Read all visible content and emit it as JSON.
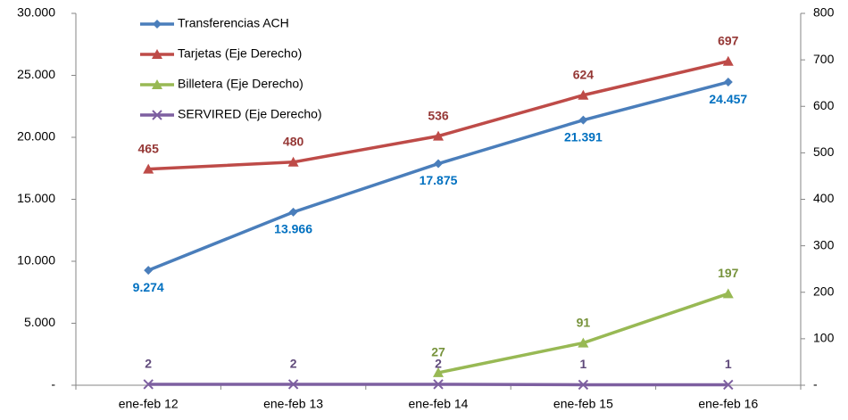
{
  "chart_data": {
    "type": "line",
    "categories": [
      "ene-feb 12",
      "ene-feb 13",
      "ene-feb 14",
      "ene-feb 15",
      "ene-feb 16"
    ],
    "series": [
      {
        "name": "Transferencias ACH",
        "color": "#4a7ebb",
        "label_color": "#0070c0",
        "marker": "diamond",
        "values": [
          9274,
          13966,
          17875,
          21391,
          24457
        ],
        "value_labels": [
          "9.274",
          "13.966",
          "17.875",
          "21.391",
          "24.457"
        ]
      },
      {
        "name": "Tarjetas (Eje Derecho)",
        "color": "#be4b48",
        "label_color": "#953735",
        "marker": "triangle",
        "axis": "y2",
        "values": [
          465,
          480,
          536,
          624,
          697
        ]
      },
      {
        "name": "Billetera (Eje Derecho)",
        "color": "#98b954",
        "label_color": "#77933c",
        "marker": "triangle",
        "axis": "y2",
        "values": [
          null,
          null,
          27,
          91,
          197
        ]
      },
      {
        "name": "SERVIRED (Eje Derecho)",
        "color": "#7d5fa0",
        "label_color": "#604a7b",
        "marker": "x",
        "axis": "y2",
        "values": [
          2,
          2,
          2,
          1,
          1
        ]
      }
    ],
    "ylim": [
      0,
      30000
    ],
    "yticks": [
      {
        "value": 0,
        "label": "-"
      },
      {
        "value": 5000,
        "label": "5.000"
      },
      {
        "value": 10000,
        "label": "10.000"
      },
      {
        "value": 15000,
        "label": "15.000"
      },
      {
        "value": 20000,
        "label": "20.000"
      },
      {
        "value": 25000,
        "label": "25.000"
      },
      {
        "value": 30000,
        "label": "30.000"
      }
    ],
    "y2lim": [
      0,
      800
    ],
    "y2ticks": [
      {
        "value": 0,
        "label": "-"
      },
      100,
      200,
      300,
      400,
      500,
      600,
      700,
      800
    ],
    "legend": "top-left"
  }
}
